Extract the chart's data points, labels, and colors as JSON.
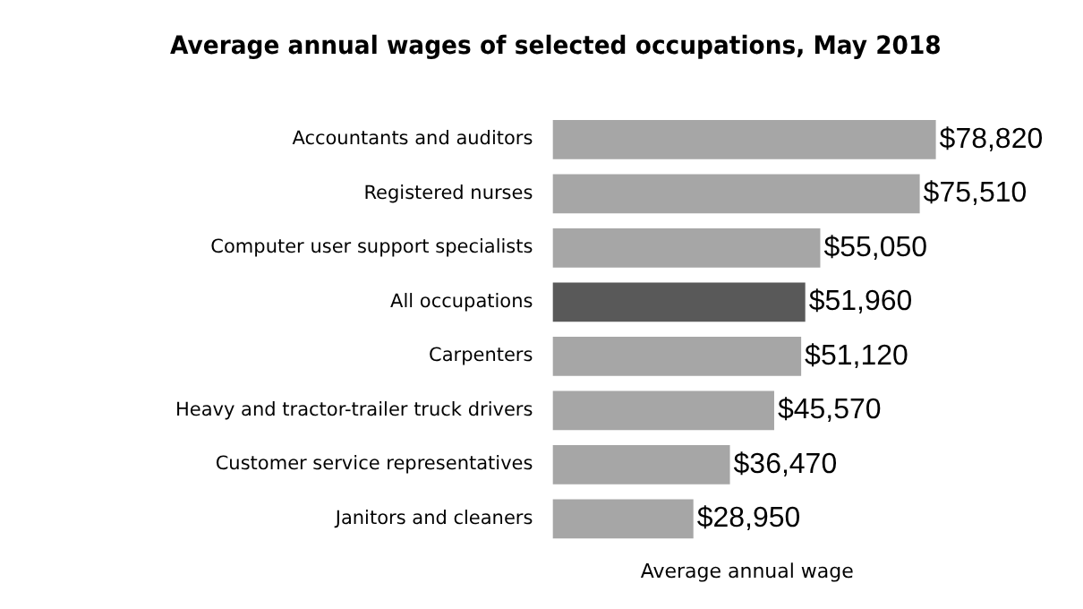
{
  "chart_data": {
    "type": "bar",
    "orientation": "horizontal",
    "title": "Average annual wages of selected occupations, May 2018",
    "xlabel": "Average annual wage",
    "categories": [
      "Accountants and auditors",
      "Registered nurses",
      "Computer user support specialists",
      "All occupations",
      "Carpenters",
      "Heavy and tractor-trailer truck drivers",
      "Customer service representatives",
      "Janitors and cleaners"
    ],
    "values": [
      78820,
      75510,
      55050,
      51960,
      51120,
      45570,
      36470,
      28950
    ],
    "colors": [
      "#a6a6a6",
      "#a6a6a6",
      "#a6a6a6",
      "#595959",
      "#a6a6a6",
      "#a6a6a6",
      "#a6a6a6",
      "#a6a6a6"
    ],
    "value_labels": [
      "$78,820",
      "$75,510",
      "$55,050",
      "$51,960",
      "$51,120",
      "$45,570",
      "$36,470",
      "$28,950"
    ],
    "grid": false,
    "legend": false
  }
}
